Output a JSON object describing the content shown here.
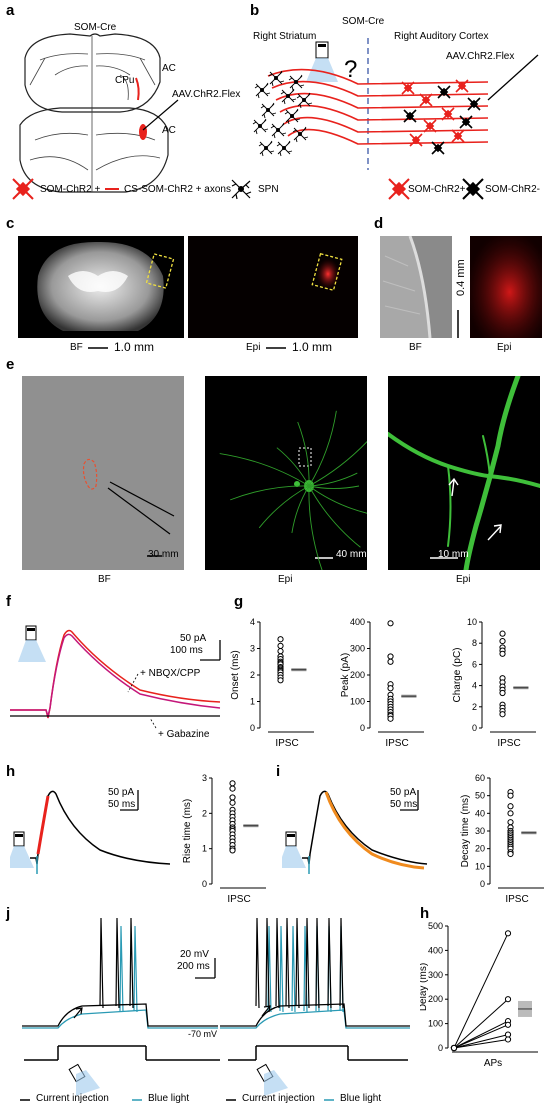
{
  "panels": {
    "a": {
      "letter": "a",
      "title": "SOM-Cre",
      "labels": {
        "ac_top": "AC",
        "cpu": "CPu",
        "virus": "AAV.ChR2.Flex",
        "ac_bottom": "AC"
      },
      "legend": {
        "som_chr2": "SOM-ChR2 +",
        "axons": "CS-SOM-ChR2 + axons",
        "spn": "SPN"
      }
    },
    "b": {
      "letter": "b",
      "title": "SOM-Cre",
      "left_title": "Right Striatum",
      "right_title": "Right Auditory Cortex",
      "virus": "AAV.ChR2.Flex",
      "question": "?",
      "legend": {
        "pos": "SOM-ChR2+",
        "neg": "SOM-ChR2-"
      }
    },
    "c": {
      "letter": "c",
      "bf": "BF",
      "epi": "Epi",
      "scale_bf": "1.0 mm",
      "scale_epi": "1.0 mm"
    },
    "d": {
      "letter": "d",
      "bf": "BF",
      "epi": "Epi",
      "scale": "0.4 mm"
    },
    "e": {
      "letter": "e",
      "bf": "BF",
      "epi1": "Epi",
      "epi2": "Epi",
      "scale1": "30 mm",
      "scale2": "40 mm",
      "scale3": "10 mm"
    },
    "f": {
      "letter": "f",
      "scale_y": "50 pA",
      "scale_x": "100 ms",
      "nbqx": "+ NBQX/CPP",
      "gabazine": "+ Gabazine"
    },
    "g": {
      "letter": "g"
    },
    "h": {
      "letter": "h",
      "scale_y": "50 pA",
      "scale_x": "50 ms"
    },
    "i": {
      "letter": "i",
      "scale_y": "50 pA",
      "scale_x": "50 ms"
    },
    "j": {
      "letter": "j",
      "scale_y": "20 mV",
      "scale_x": "200 ms",
      "vrest": "-70 mV",
      "legend1": {
        "current": "Current injection",
        "blue": "Blue light"
      },
      "legend2": {
        "current": "Current injection",
        "blue": "Blue light"
      }
    },
    "h2": {
      "letter": "h"
    }
  },
  "colors": {
    "red": "#e8221d",
    "blue": "#2a9ab4",
    "magenta": "#c4177a",
    "orange": "#f08b1e",
    "green": "#3fbf3a",
    "yellow": "#f0e040"
  },
  "chart_data": [
    {
      "id": "g-onset",
      "type": "scatter",
      "ylabel": "Onset (ms)",
      "xlabel": "IPSC",
      "ylim": [
        0,
        4
      ],
      "yticks": [
        0,
        1,
        2,
        3,
        4
      ],
      "values": [
        3.35,
        3.1,
        2.9,
        2.7,
        2.6,
        2.5,
        2.45,
        2.4,
        2.3,
        2.25,
        2.2,
        2.15,
        2.1,
        2.0,
        1.9,
        1.8
      ],
      "mean": 2.2
    },
    {
      "id": "g-peak",
      "type": "scatter",
      "ylabel": "Peak (pA)",
      "xlabel": "IPSC",
      "ylim": [
        0,
        400
      ],
      "yticks": [
        0,
        100,
        200,
        300,
        400
      ],
      "values": [
        395,
        270,
        250,
        165,
        150,
        125,
        110,
        100,
        90,
        80,
        70,
        60,
        50,
        45,
        35
      ],
      "mean": 120
    },
    {
      "id": "g-charge",
      "type": "scatter",
      "ylabel": "Charge (pC)",
      "xlabel": "IPSC",
      "ylim": [
        0,
        10
      ],
      "yticks": [
        0,
        2,
        4,
        6,
        8,
        10
      ],
      "values": [
        8.9,
        8.2,
        7.6,
        7.3,
        7.0,
        4.7,
        4.3,
        3.9,
        3.6,
        3.3,
        2.2,
        1.9,
        1.6,
        1.3
      ],
      "mean": 3.8
    },
    {
      "id": "h-rise",
      "type": "scatter",
      "ylabel": "Rise time (ms)",
      "xlabel": "IPSC",
      "ylim": [
        0,
        3
      ],
      "yticks": [
        0,
        1,
        2,
        3
      ],
      "values": [
        2.85,
        2.7,
        2.45,
        2.3,
        2.1,
        2.0,
        1.9,
        1.8,
        1.7,
        1.6,
        1.55,
        1.5,
        1.4,
        1.3,
        1.2,
        1.1,
        1.0,
        0.95
      ],
      "mean": 1.65
    },
    {
      "id": "i-decay",
      "type": "scatter",
      "ylabel": "Decay time (ms)",
      "xlabel": "IPSC",
      "ylim": [
        0,
        60
      ],
      "yticks": [
        0,
        10,
        20,
        30,
        40,
        50,
        60
      ],
      "values": [
        52,
        50,
        44,
        40,
        35,
        32,
        30,
        29,
        28,
        27,
        26,
        25,
        24,
        23,
        22,
        21,
        20,
        18,
        17
      ],
      "mean": 29
    },
    {
      "id": "h2-delay",
      "type": "line",
      "ylabel": "Delay (ms)",
      "xlabel": "APs",
      "ylim": [
        0,
        500
      ],
      "yticks": [
        0,
        100,
        200,
        300,
        400,
        500
      ],
      "series": [
        {
          "values": [
            0,
            470
          ]
        },
        {
          "values": [
            0,
            200
          ]
        },
        {
          "values": [
            0,
            110
          ]
        },
        {
          "values": [
            0,
            95
          ]
        },
        {
          "values": [
            0,
            55
          ]
        },
        {
          "values": [
            0,
            35
          ]
        }
      ],
      "mean": 160
    }
  ]
}
